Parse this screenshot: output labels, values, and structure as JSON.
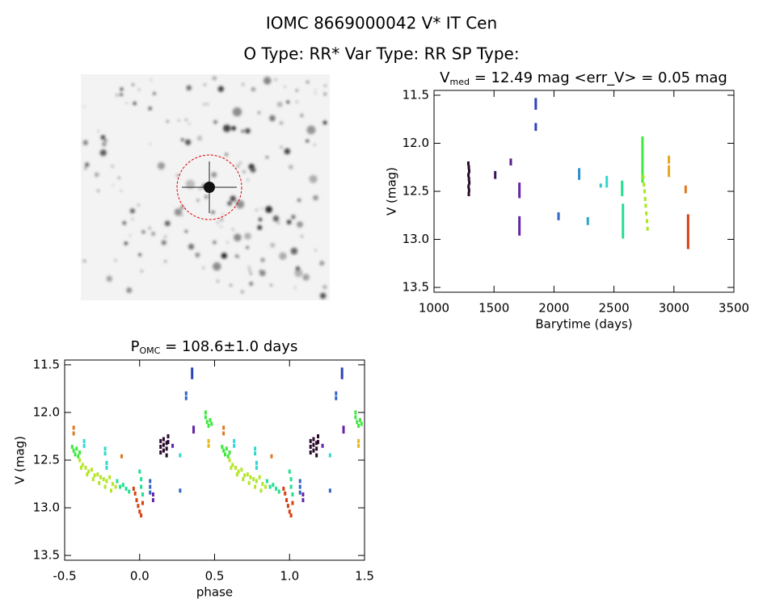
{
  "header": {
    "title": "IOMC 8669000042   V* IT Cen",
    "subtitle": "O Type: RR*  Var Type: RR  SP Type:"
  },
  "chart_data": [
    {
      "type": "scatter",
      "title": [
        "V",
        "med",
        " = 12.49 mag <err_V> = 0.05 mag"
      ],
      "xlabel": "Barytime (days)",
      "ylabel": "V (mag)",
      "xlim": [
        1000,
        3500
      ],
      "xticks": [
        1000,
        1500,
        2000,
        2500,
        3000,
        3500
      ],
      "ylim": [
        13.55,
        11.45
      ],
      "yticks": [
        11.5,
        {
          "value": 12,
          "label": "12.0"
        },
        12.5,
        {
          "value": 13,
          "label": "13.0"
        },
        13.5
      ],
      "series": [
        {
          "color": "#2a0a2a",
          "x": [
            1286,
            1290,
            1293,
            1287,
            1291,
            1294,
            1288,
            1292,
            1290
          ],
          "values": [
            12.21,
            12.25,
            12.29,
            12.33,
            12.37,
            12.41,
            12.45,
            12.49,
            12.53
          ]
        },
        {
          "color": "#3a1458",
          "x": [
            1510,
            1510
          ],
          "values": [
            12.31,
            12.35
          ]
        },
        {
          "color": "#5a1e8a",
          "x": [
            1640,
            1640
          ],
          "values": [
            12.18,
            12.21
          ]
        },
        {
          "color": "#6424a8",
          "x": [
            1712,
            1712,
            1712,
            1712,
            1712,
            1712,
            1712,
            1712,
            1712
          ],
          "values": [
            12.43,
            12.47,
            12.51,
            12.55,
            12.78,
            12.82,
            12.86,
            12.9,
            12.94
          ]
        },
        {
          "color": "#2a44b8",
          "x": [
            1848,
            1848,
            1848,
            1848,
            1848
          ],
          "values": [
            11.55,
            11.59,
            11.63,
            11.81,
            11.85
          ]
        },
        {
          "color": "#3264c4",
          "x": [
            2038,
            2038
          ],
          "values": [
            12.74,
            12.78
          ]
        },
        {
          "color": "#2e90cc",
          "x": [
            2210,
            2210,
            2210
          ],
          "values": [
            12.28,
            12.32,
            12.36
          ]
        },
        {
          "color": "#28a8c0",
          "x": [
            2282,
            2282
          ],
          "values": [
            12.79,
            12.83
          ]
        },
        {
          "color": "#30c4d0",
          "x": [
            2390
          ],
          "values": [
            12.44
          ]
        },
        {
          "color": "#30d8d0",
          "x": [
            2440,
            2440,
            2440
          ],
          "values": [
            12.36,
            12.4,
            12.44
          ]
        },
        {
          "color": "#22e090",
          "x": [
            2568,
            2568,
            2568,
            2568,
            2575,
            2575,
            2575,
            2575,
            2575,
            2575,
            2575,
            2575,
            2575
          ],
          "values": [
            12.41,
            12.45,
            12.49,
            12.53,
            12.65,
            12.69,
            12.73,
            12.77,
            12.81,
            12.85,
            12.89,
            12.93,
            12.97
          ]
        },
        {
          "color": "#40e840",
          "x": [
            2738,
            2738,
            2738,
            2738,
            2738,
            2738,
            2738,
            2738,
            2738,
            2738,
            2738,
            2738
          ],
          "values": [
            11.95,
            11.99,
            12.03,
            12.07,
            12.11,
            12.15,
            12.19,
            12.23,
            12.27,
            12.31,
            12.35,
            12.39
          ]
        },
        {
          "color": "#a8e820",
          "x": [
            2745,
            2750,
            2755,
            2760,
            2765,
            2770,
            2775,
            2780
          ],
          "values": [
            12.35,
            12.43,
            12.5,
            12.58,
            12.65,
            12.73,
            12.81,
            12.89
          ]
        },
        {
          "color": "#e8a81c",
          "x": [
            2958,
            2958,
            2958,
            2958,
            2958
          ],
          "values": [
            12.15,
            12.19,
            12.25,
            12.29,
            12.33
          ]
        },
        {
          "color": "#e07820",
          "x": [
            3098,
            3098
          ],
          "values": [
            12.46,
            12.5
          ]
        },
        {
          "color": "#d44010",
          "x": [
            3118,
            3118,
            3118,
            3118,
            3118,
            3118,
            3118,
            3118,
            3118
          ],
          "values": [
            12.76,
            12.8,
            12.84,
            12.88,
            12.92,
            12.96,
            13.0,
            13.04,
            13.08
          ]
        }
      ]
    },
    {
      "type": "scatter",
      "title": [
        "P",
        "OMC",
        " = 108.6±1.0 days"
      ],
      "xlabel": "phase",
      "ylabel": "V (mag)",
      "xlim": [
        -0.5,
        1.5
      ],
      "xticks": [
        -0.5,
        {
          "value": 0,
          "label": "0.0"
        },
        0.5,
        {
          "value": 1,
          "label": "1.0"
        },
        1.5
      ],
      "ylim": [
        13.55,
        11.45
      ],
      "yticks": [
        11.5,
        {
          "value": 12,
          "label": "12.0"
        },
        12.5,
        {
          "value": 13,
          "label": "13.0"
        },
        13.5
      ],
      "series": [
        {
          "color": "#40e840",
          "x": [
            -0.45,
            -0.44,
            -0.43,
            -0.42,
            -0.41,
            -0.4,
            0.44,
            0.45,
            0.46,
            0.47,
            0.48,
            0.44
          ],
          "values": [
            12.36,
            12.4,
            12.44,
            12.38,
            12.46,
            12.42,
            12.05,
            12.1,
            12.14,
            12.08,
            12.12,
            12.0
          ]
        },
        {
          "color": "#b4e628",
          "x": [
            -0.4,
            -0.38,
            -0.36,
            -0.34,
            -0.32,
            -0.3,
            -0.28,
            -0.26,
            -0.24,
            -0.22,
            -0.2,
            -0.18,
            -0.16,
            -0.39,
            -0.35,
            -0.31,
            -0.27,
            -0.23,
            -0.19
          ],
          "values": [
            12.5,
            12.55,
            12.58,
            12.62,
            12.6,
            12.66,
            12.65,
            12.68,
            12.7,
            12.72,
            12.68,
            12.75,
            12.78,
            12.58,
            12.65,
            12.7,
            12.74,
            12.78,
            12.82
          ]
        },
        {
          "color": "#30d8d0",
          "x": [
            -0.37,
            -0.37,
            -0.23,
            -0.23,
            -0.22,
            -0.22,
            0.27
          ],
          "values": [
            12.3,
            12.35,
            12.38,
            12.43,
            12.53,
            12.58,
            12.45
          ]
        },
        {
          "color": "#e07820",
          "x": [
            -0.12,
            -0.44,
            -0.44
          ],
          "values": [
            12.46,
            12.16,
            12.22
          ]
        },
        {
          "color": "#e8b81c",
          "x": [
            0.46,
            0.46
          ],
          "values": [
            12.3,
            12.35
          ]
        },
        {
          "color": "#22e090",
          "x": [
            -0.15,
            -0.13,
            -0.11,
            -0.09,
            -0.07,
            0.0,
            0.01,
            0.01,
            0.02
          ],
          "values": [
            12.72,
            12.78,
            12.76,
            12.8,
            12.83,
            12.62,
            12.7,
            12.78,
            12.86
          ]
        },
        {
          "color": "#d44010",
          "x": [
            -0.04,
            -0.03,
            -0.02,
            -0.01,
            0.0,
            0.01,
            0.02
          ],
          "values": [
            12.8,
            12.85,
            12.92,
            12.98,
            13.04,
            13.08,
            12.95
          ]
        },
        {
          "color": "#3264c4",
          "x": [
            0.07,
            0.07,
            0.07,
            0.27,
            0.31,
            0.31
          ],
          "values": [
            12.72,
            12.78,
            12.84,
            12.82,
            11.8,
            11.85
          ]
        },
        {
          "color": "#2a44b8",
          "x": [
            0.35,
            0.35,
            0.35
          ],
          "values": [
            11.55,
            11.59,
            11.63
          ]
        },
        {
          "color": "#6424a8",
          "x": [
            0.09,
            0.09,
            0.22,
            0.36,
            0.36
          ],
          "values": [
            12.86,
            12.92,
            12.35,
            12.16,
            12.2
          ]
        },
        {
          "color": "#2a0a2a",
          "x": [
            0.14,
            0.14,
            0.14,
            0.16,
            0.16,
            0.16,
            0.18,
            0.18,
            0.18,
            0.19,
            0.19
          ],
          "values": [
            12.3,
            12.36,
            12.42,
            12.28,
            12.34,
            12.4,
            12.32,
            12.38,
            12.45,
            12.25,
            12.31
          ]
        },
        {
          "color": "#40e840",
          "x": [
            0.55,
            0.56,
            0.57,
            0.58,
            0.59,
            0.6,
            1.44,
            1.45,
            1.46,
            1.47,
            1.48,
            1.44
          ],
          "values": [
            12.36,
            12.4,
            12.44,
            12.38,
            12.46,
            12.42,
            12.05,
            12.1,
            12.14,
            12.08,
            12.12,
            12.0
          ]
        },
        {
          "color": "#b4e628",
          "x": [
            0.6,
            0.62,
            0.64,
            0.66,
            0.68,
            0.7,
            0.72,
            0.74,
            0.76,
            0.78,
            0.8,
            0.82,
            0.84,
            0.61,
            0.65,
            0.69,
            0.73,
            0.77,
            0.81
          ],
          "values": [
            12.5,
            12.55,
            12.58,
            12.62,
            12.6,
            12.66,
            12.65,
            12.68,
            12.7,
            12.72,
            12.68,
            12.75,
            12.78,
            12.58,
            12.65,
            12.7,
            12.74,
            12.78,
            12.82
          ]
        },
        {
          "color": "#30d8d0",
          "x": [
            0.63,
            0.63,
            0.77,
            0.77,
            0.78,
            0.78,
            1.27
          ],
          "values": [
            12.3,
            12.35,
            12.38,
            12.43,
            12.53,
            12.58,
            12.45
          ]
        },
        {
          "color": "#e07820",
          "x": [
            0.88,
            0.56,
            0.56
          ],
          "values": [
            12.46,
            12.16,
            12.22
          ]
        },
        {
          "color": "#e8b81c",
          "x": [
            1.46,
            1.46
          ],
          "values": [
            12.3,
            12.35
          ]
        },
        {
          "color": "#22e090",
          "x": [
            0.85,
            0.87,
            0.89,
            0.91,
            0.93,
            1.0,
            1.01,
            1.01,
            1.02
          ],
          "values": [
            12.72,
            12.78,
            12.76,
            12.8,
            12.83,
            12.62,
            12.7,
            12.78,
            12.86
          ]
        },
        {
          "color": "#d44010",
          "x": [
            0.96,
            0.97,
            0.98,
            0.99,
            1.0,
            1.01,
            1.02
          ],
          "values": [
            12.8,
            12.85,
            12.92,
            12.98,
            13.04,
            13.08,
            12.95
          ]
        },
        {
          "color": "#3264c4",
          "x": [
            1.07,
            1.07,
            1.07,
            1.27,
            1.31,
            1.31
          ],
          "values": [
            12.72,
            12.78,
            12.84,
            12.82,
            11.8,
            11.85
          ]
        },
        {
          "color": "#2a44b8",
          "x": [
            1.35,
            1.35,
            1.35
          ],
          "values": [
            11.55,
            11.59,
            11.63
          ]
        },
        {
          "color": "#6424a8",
          "x": [
            1.09,
            1.09,
            1.22,
            1.36,
            1.36
          ],
          "values": [
            12.86,
            12.92,
            12.35,
            12.16,
            12.2
          ]
        },
        {
          "color": "#2a0a2a",
          "x": [
            1.14,
            1.14,
            1.14,
            1.16,
            1.16,
            1.16,
            1.18,
            1.18,
            1.18,
            1.19,
            1.19
          ],
          "values": [
            12.3,
            12.36,
            12.42,
            12.28,
            12.34,
            12.4,
            12.32,
            12.38,
            12.45,
            12.25,
            12.31
          ]
        }
      ]
    }
  ]
}
